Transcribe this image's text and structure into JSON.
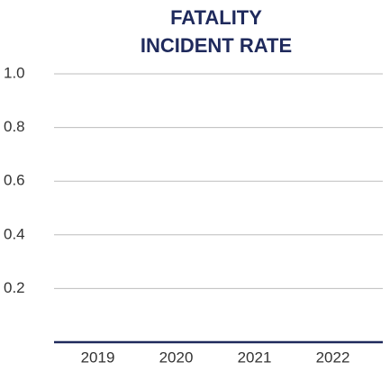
{
  "chart_data": {
    "type": "bar",
    "title": [
      "FATALITY",
      "INCIDENT RATE"
    ],
    "categories": [
      "2019",
      "2020",
      "2021",
      "2022"
    ],
    "values": [
      0,
      0,
      0,
      0
    ],
    "color": "#1f2a5c",
    "ylim": [
      0,
      1
    ],
    "yticks": [
      0.2,
      0.4,
      0.6,
      0.8,
      {
        "value": 1,
        "label": "1.0"
      }
    ],
    "grid": true
  }
}
